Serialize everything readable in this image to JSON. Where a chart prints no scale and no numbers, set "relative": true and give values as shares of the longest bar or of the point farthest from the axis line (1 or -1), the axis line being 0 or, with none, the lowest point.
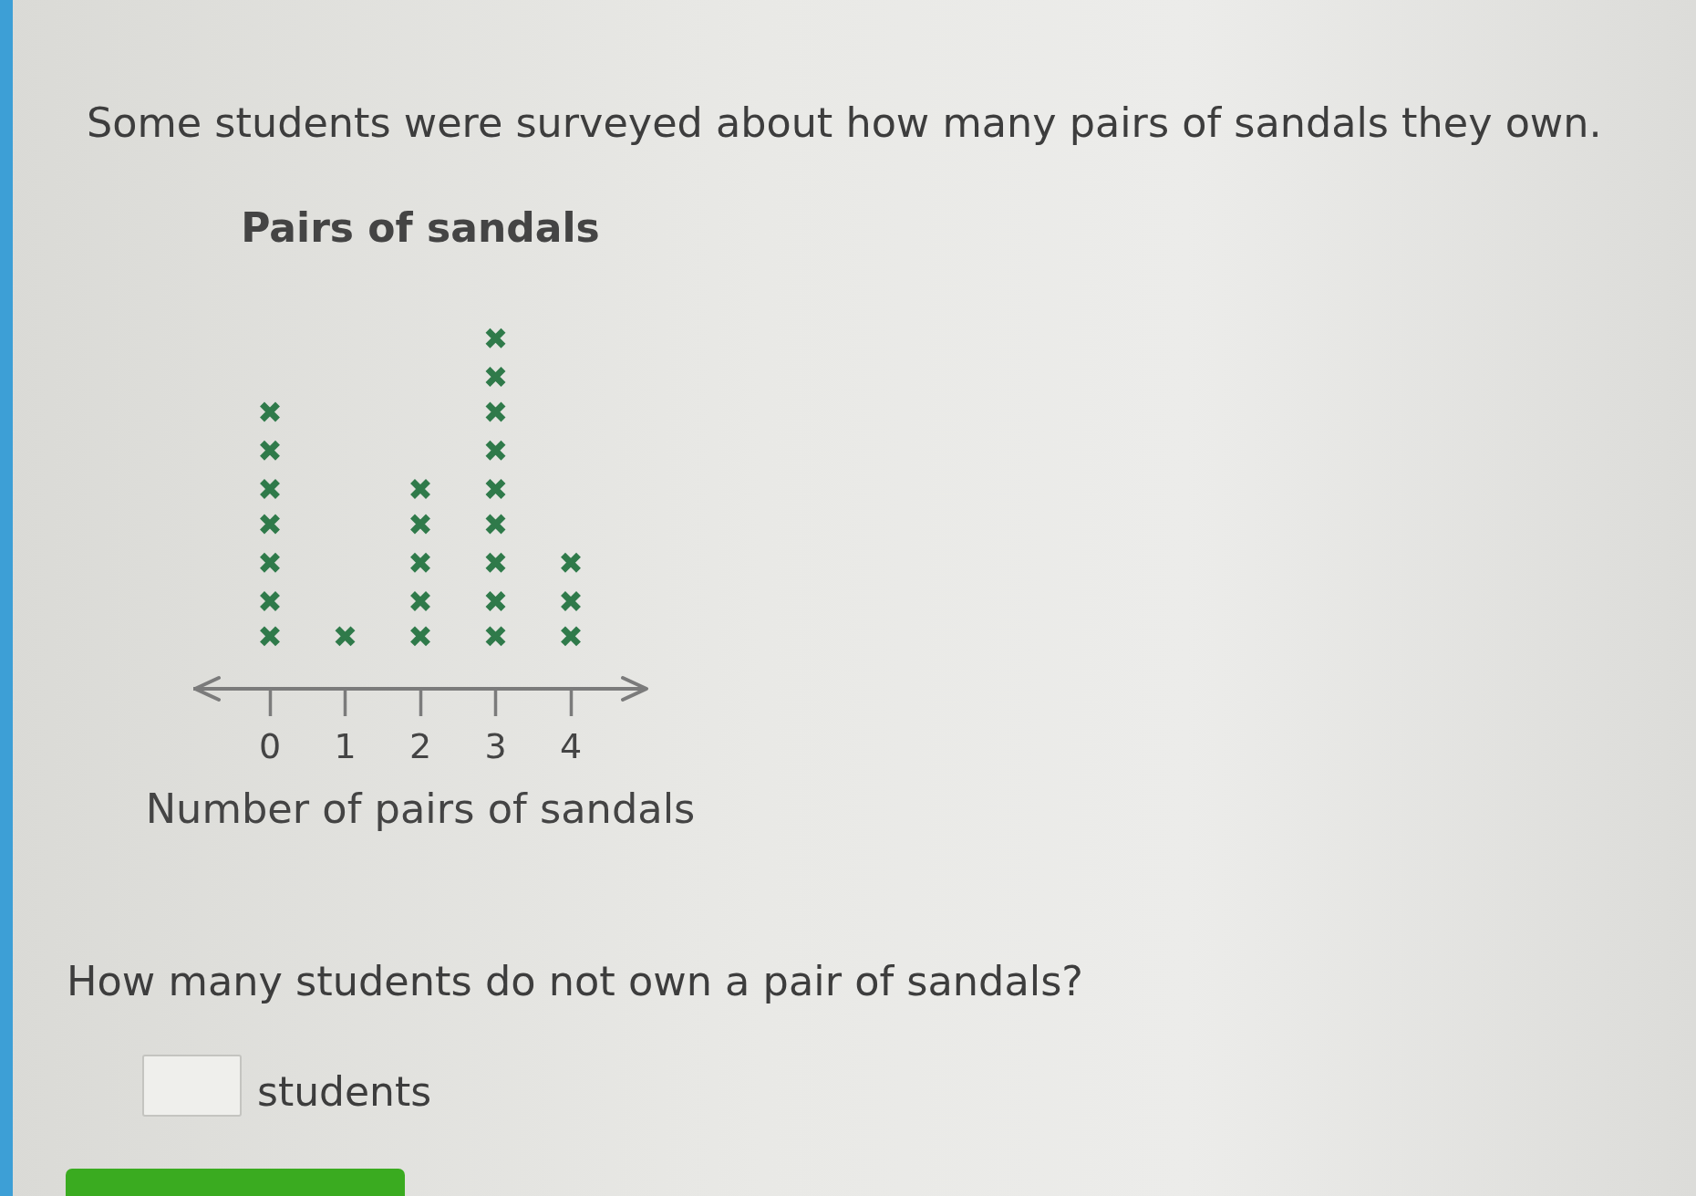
{
  "chart_data": {
    "type": "scatter",
    "title": "Pairs of sandals",
    "xlabel": "Number of pairs of sandals",
    "annotations": [
      "Some students were surveyed about how many pairs of sandals they own.",
      "How many students do not own a pair of sandals?",
      "students"
    ],
    "x": [
      0,
      0,
      0,
      0,
      0,
      0,
      0,
      1,
      2,
      2,
      2,
      2,
      2,
      3,
      3,
      3,
      3,
      3,
      3,
      3,
      3,
      3,
      4,
      4,
      4
    ],
    "values": [
      0.15,
      0.25,
      0.36,
      0.47,
      0.57,
      0.68,
      0.79,
      0.15,
      0.15,
      0.25,
      0.36,
      0.47,
      0.57,
      0.15,
      0.25,
      0.36,
      0.47,
      0.57,
      0.68,
      0.79,
      0.89,
      1,
      0.15,
      0.25,
      0.36
    ],
    "relative": true,
    "color": "#2f7a4a",
    "marker": "cross",
    "xlim": [
      -1,
      5
    ],
    "xticks": [
      0,
      1,
      2,
      3,
      4
    ],
    "tick_labels": "x"
  }
}
